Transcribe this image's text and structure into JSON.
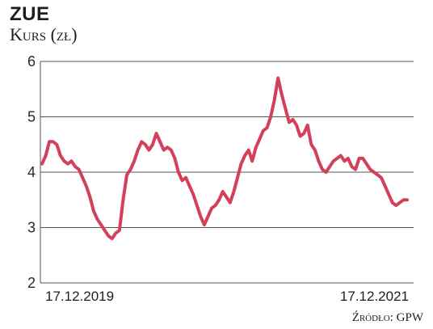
{
  "chart_data": {
    "type": "line",
    "title": "ZUE",
    "subtitle": "Kurs (zł)",
    "source": "Źródło: GPW",
    "ylim": [
      2,
      6
    ],
    "yticks": [
      2,
      3,
      4,
      5,
      6
    ],
    "x_labels": [
      "17.12.2019",
      "17.12.2021"
    ],
    "x_range": [
      "2019-12-17",
      "2021-12-17"
    ],
    "grid": true,
    "line_color": "#d2405a",
    "series": [
      {
        "values": [
          4.15,
          4.3,
          4.55,
          4.55,
          4.5,
          4.3,
          4.2,
          4.15,
          4.2,
          4.1,
          4.05,
          3.9,
          3.75,
          3.55,
          3.3,
          3.15,
          3.05,
          2.95,
          2.85,
          2.8,
          2.9,
          2.95,
          3.5,
          3.95,
          4.05,
          4.2,
          4.4,
          4.55,
          4.5,
          4.4,
          4.5,
          4.7,
          4.55,
          4.4,
          4.45,
          4.4,
          4.25,
          4.0,
          3.85,
          3.9,
          3.75,
          3.6,
          3.4,
          3.2,
          3.05,
          3.2,
          3.35,
          3.4,
          3.5,
          3.65,
          3.55,
          3.45,
          3.65,
          3.9,
          4.15,
          4.3,
          4.4,
          4.2,
          4.45,
          4.6,
          4.75,
          4.8,
          5.0,
          5.3,
          5.7,
          5.4,
          5.15,
          4.9,
          4.95,
          4.85,
          4.65,
          4.7,
          4.85,
          4.5,
          4.4,
          4.2,
          4.05,
          4.0,
          4.1,
          4.2,
          4.25,
          4.3,
          4.2,
          4.25,
          4.1,
          4.05,
          4.25,
          4.25,
          4.15,
          4.05,
          4.0,
          3.95,
          3.9,
          3.75,
          3.6,
          3.45,
          3.4,
          3.45,
          3.5,
          3.5
        ]
      }
    ]
  }
}
